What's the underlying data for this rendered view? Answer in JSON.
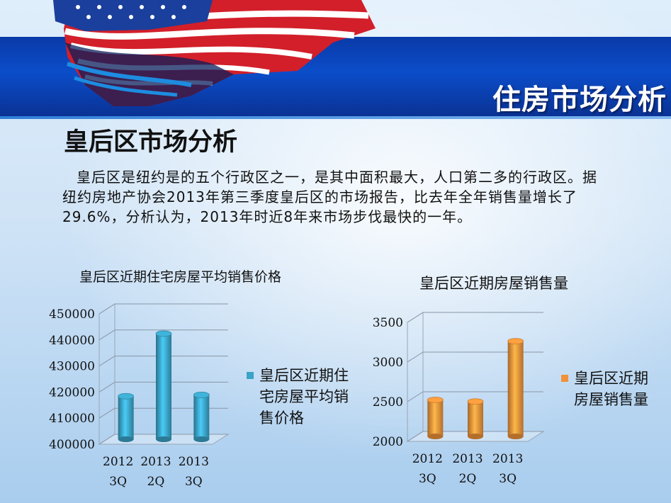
{
  "header": {
    "title": "住房市场分析"
  },
  "section": {
    "title": "皇后区市场分析",
    "body": "皇后区是纽约是的五个行政区之一，是其中面积最大，人口第二多的行政区。据纽约房地产协会2013年第三季度皇后区的市场报告，比去年全年销售量增长了29.6%，分析认为，2013年时近8年来市场步伐最快的一年。"
  },
  "chart_data": [
    {
      "type": "bar",
      "title": "皇后区近期住宅房屋平均销售价格",
      "categories": [
        [
          "2012",
          "3Q"
        ],
        [
          "2013",
          "2Q"
        ],
        [
          "2013",
          "3Q"
        ]
      ],
      "series": [
        {
          "name": "皇后区近期住宅房屋平均销售价格",
          "values": [
            416500,
            440500,
            417000
          ],
          "color": "#3aa3c6"
        }
      ],
      "ylim": [
        400000,
        450000
      ],
      "yticks": [
        400000,
        410000,
        420000,
        430000,
        440000,
        450000
      ],
      "legend": "right",
      "grid": true
    },
    {
      "type": "bar",
      "title": "皇后区近期房屋销售量",
      "categories": [
        [
          "2012",
          "3Q"
        ],
        [
          "2013",
          "2Q"
        ],
        [
          "2013",
          "3Q"
        ]
      ],
      "series": [
        {
          "name": "皇后区近期房屋销售量",
          "values": [
            2460,
            2440,
            3200
          ],
          "color": "#f0923a"
        }
      ],
      "ylim": [
        2000,
        3500
      ],
      "yticks": [
        2000,
        2500,
        3000,
        3500
      ],
      "legend": "right",
      "grid": true
    }
  ]
}
